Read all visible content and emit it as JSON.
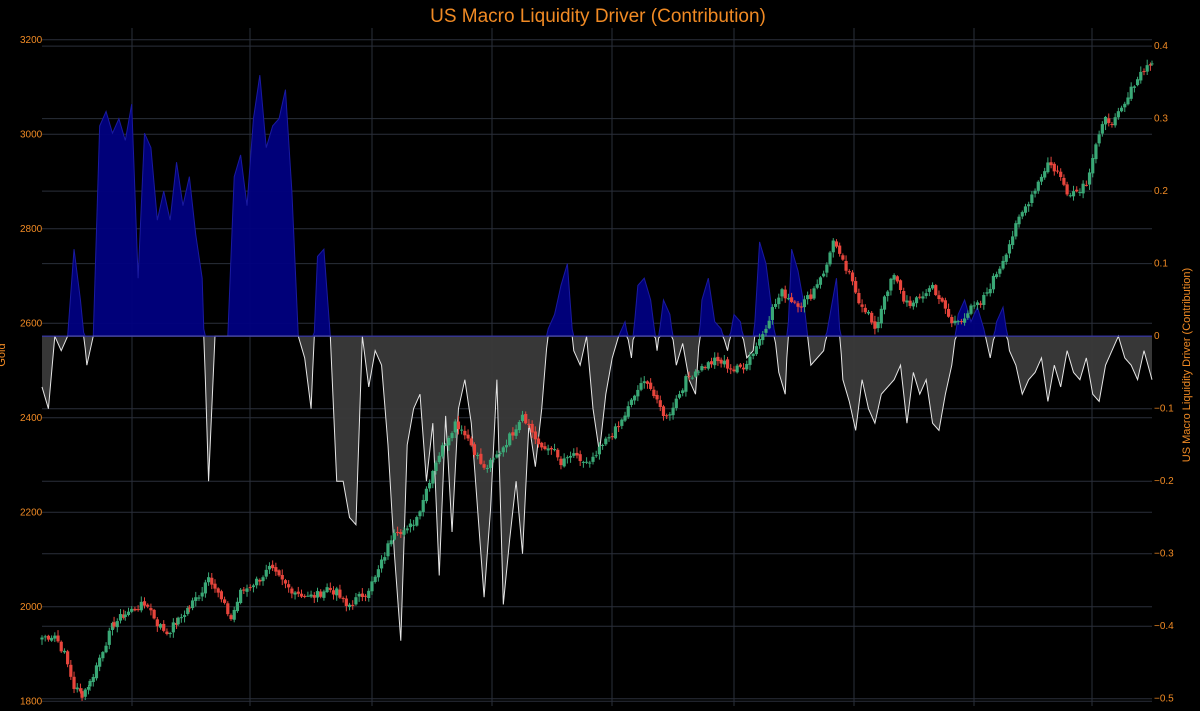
{
  "chart_data": {
    "type": "candlestick-with-area",
    "title": "US Macro Liquidity Driver (Contribution)",
    "y_left_label": "Gold",
    "y_right_label": "US Macro Liquidity Driver (Contribution)",
    "y_left_range": [
      1790,
      3225
    ],
    "y_right_range": [
      -0.51,
      0.425
    ],
    "y_left_ticks": [
      "1800",
      "2000",
      "2200",
      "2400",
      "2600",
      "2800",
      "3000",
      "3200"
    ],
    "y_right_ticks": [
      "−0.5",
      "−0.4",
      "−0.3",
      "−0.2",
      "−0.1",
      "0",
      "0.1",
      "0.2",
      "0.3",
      "0.4"
    ],
    "y_left_tick_values": [
      1800,
      2000,
      2200,
      2400,
      2600,
      2800,
      3000,
      3200
    ],
    "y_right_tick_values": [
      -0.5,
      -0.4,
      -0.3,
      -0.2,
      -0.1,
      0,
      0.1,
      0.2,
      0.3,
      0.4
    ],
    "x_tick_labels": [],
    "grid": true,
    "series": [
      {
        "kind": "candlestick",
        "axis": "left",
        "up_color": "#3aa876",
        "down_color": "#e8453c",
        "close_anchors": [
          [
            0,
            1935
          ],
          [
            8,
            1940
          ],
          [
            14,
            1900
          ],
          [
            20,
            1830
          ],
          [
            25,
            1815
          ],
          [
            30,
            1840
          ],
          [
            38,
            1910
          ],
          [
            45,
            1965
          ],
          [
            52,
            1985
          ],
          [
            60,
            2000
          ],
          [
            66,
            2005
          ],
          [
            72,
            1965
          ],
          [
            78,
            1945
          ],
          [
            85,
            1970
          ],
          [
            92,
            2000
          ],
          [
            100,
            2035
          ],
          [
            104,
            2070
          ],
          [
            108,
            2040
          ],
          [
            114,
            2000
          ],
          [
            118,
            1975
          ],
          [
            124,
            2030
          ],
          [
            130,
            2045
          ],
          [
            136,
            2060
          ],
          [
            142,
            2080
          ],
          [
            148,
            2060
          ],
          [
            154,
            2040
          ],
          [
            160,
            2030
          ],
          [
            166,
            2020
          ],
          [
            172,
            2025
          ],
          [
            178,
            2040
          ],
          [
            184,
            2030
          ],
          [
            190,
            2000
          ],
          [
            196,
            2015
          ],
          [
            202,
            2030
          ],
          [
            208,
            2060
          ],
          [
            214,
            2110
          ],
          [
            220,
            2165
          ],
          [
            228,
            2160
          ],
          [
            234,
            2190
          ],
          [
            240,
            2250
          ],
          [
            246,
            2310
          ],
          [
            252,
            2350
          ],
          [
            258,
            2390
          ],
          [
            264,
            2370
          ],
          [
            270,
            2330
          ],
          [
            276,
            2290
          ],
          [
            282,
            2310
          ],
          [
            288,
            2340
          ],
          [
            294,
            2370
          ],
          [
            300,
            2410
          ],
          [
            306,
            2370
          ],
          [
            312,
            2330
          ],
          [
            318,
            2340
          ],
          [
            324,
            2300
          ],
          [
            330,
            2320
          ],
          [
            336,
            2310
          ],
          [
            342,
            2300
          ],
          [
            348,
            2330
          ],
          [
            354,
            2360
          ],
          [
            360,
            2380
          ],
          [
            366,
            2420
          ],
          [
            372,
            2460
          ],
          [
            378,
            2480
          ],
          [
            384,
            2430
          ],
          [
            390,
            2400
          ],
          [
            396,
            2440
          ],
          [
            402,
            2480
          ],
          [
            408,
            2500
          ],
          [
            414,
            2510
          ],
          [
            420,
            2520
          ],
          [
            426,
            2515
          ],
          [
            432,
            2500
          ],
          [
            438,
            2510
          ],
          [
            444,
            2540
          ],
          [
            450,
            2580
          ],
          [
            456,
            2630
          ],
          [
            462,
            2665
          ],
          [
            468,
            2650
          ],
          [
            474,
            2640
          ],
          [
            480,
            2660
          ],
          [
            486,
            2700
          ],
          [
            490,
            2720
          ],
          [
            494,
            2780
          ],
          [
            498,
            2740
          ],
          [
            504,
            2700
          ],
          [
            510,
            2650
          ],
          [
            516,
            2620
          ],
          [
            520,
            2580
          ],
          [
            526,
            2660
          ],
          [
            532,
            2700
          ],
          [
            538,
            2650
          ],
          [
            544,
            2640
          ],
          [
            550,
            2660
          ],
          [
            556,
            2680
          ],
          [
            562,
            2640
          ],
          [
            568,
            2600
          ],
          [
            574,
            2610
          ],
          [
            580,
            2630
          ],
          [
            586,
            2640
          ],
          [
            592,
            2680
          ],
          [
            598,
            2720
          ],
          [
            604,
            2770
          ],
          [
            610,
            2820
          ],
          [
            616,
            2860
          ],
          [
            622,
            2900
          ],
          [
            628,
            2940
          ],
          [
            634,
            2920
          ],
          [
            640,
            2880
          ],
          [
            646,
            2880
          ],
          [
            652,
            2900
          ],
          [
            658,
            2980
          ],
          [
            664,
            3030
          ],
          [
            670,
            3030
          ],
          [
            676,
            3060
          ],
          [
            682,
            3110
          ],
          [
            688,
            3140
          ],
          [
            693,
            3150
          ]
        ]
      },
      {
        "kind": "area",
        "axis": "right",
        "name": "",
        "positive_fill": "#000080",
        "positive_line": "#1a1aa0",
        "negative_fill": "#3a3a3a",
        "negative_line": "#e6e6e6",
        "points": [
          [
            0,
            -0.07
          ],
          [
            4,
            -0.1
          ],
          [
            8,
            0
          ],
          [
            12,
            -0.02
          ],
          [
            16,
            0
          ],
          [
            20,
            0.12
          ],
          [
            24,
            0.05
          ],
          [
            28,
            -0.04
          ],
          [
            32,
            0
          ],
          [
            36,
            0.29
          ],
          [
            40,
            0.31
          ],
          [
            44,
            0.28
          ],
          [
            48,
            0.3
          ],
          [
            52,
            0.27
          ],
          [
            56,
            0.32
          ],
          [
            60,
            0.08
          ],
          [
            64,
            0.28
          ],
          [
            68,
            0.26
          ],
          [
            72,
            0.16
          ],
          [
            76,
            0.2
          ],
          [
            80,
            0.16
          ],
          [
            84,
            0.24
          ],
          [
            88,
            0.18
          ],
          [
            92,
            0.22
          ],
          [
            96,
            0.14
          ],
          [
            100,
            0.08
          ],
          [
            104,
            -0.2
          ],
          [
            108,
            0
          ],
          [
            112,
            0
          ],
          [
            116,
            0
          ],
          [
            120,
            0.22
          ],
          [
            124,
            0.25
          ],
          [
            128,
            0.18
          ],
          [
            132,
            0.3
          ],
          [
            136,
            0.36
          ],
          [
            140,
            0.26
          ],
          [
            144,
            0.29
          ],
          [
            148,
            0.3
          ],
          [
            152,
            0.34
          ],
          [
            156,
            0.2
          ],
          [
            160,
            0
          ],
          [
            164,
            -0.03
          ],
          [
            168,
            -0.1
          ],
          [
            172,
            0.11
          ],
          [
            176,
            0.12
          ],
          [
            180,
            0
          ],
          [
            184,
            -0.2
          ],
          [
            188,
            -0.2
          ],
          [
            192,
            -0.25
          ],
          [
            196,
            -0.26
          ],
          [
            200,
            0
          ],
          [
            204,
            -0.07
          ],
          [
            208,
            -0.02
          ],
          [
            212,
            -0.04
          ],
          [
            216,
            -0.15
          ],
          [
            220,
            -0.3
          ],
          [
            224,
            -0.42
          ],
          [
            228,
            -0.15
          ],
          [
            232,
            -0.1
          ],
          [
            236,
            -0.08
          ],
          [
            240,
            -0.2
          ],
          [
            244,
            -0.12
          ],
          [
            248,
            -0.33
          ],
          [
            252,
            -0.11
          ],
          [
            256,
            -0.27
          ],
          [
            260,
            -0.1
          ],
          [
            264,
            -0.06
          ],
          [
            268,
            -0.12
          ],
          [
            272,
            -0.24
          ],
          [
            276,
            -0.36
          ],
          [
            280,
            -0.24
          ],
          [
            284,
            -0.06
          ],
          [
            288,
            -0.37
          ],
          [
            292,
            -0.28
          ],
          [
            296,
            -0.2
          ],
          [
            300,
            -0.3
          ],
          [
            304,
            -0.12
          ],
          [
            308,
            -0.18
          ],
          [
            312,
            -0.1
          ],
          [
            316,
            0.01
          ],
          [
            320,
            0.03
          ],
          [
            324,
            0.07
          ],
          [
            328,
            0.1
          ],
          [
            332,
            -0.02
          ],
          [
            336,
            -0.04
          ],
          [
            340,
            0
          ],
          [
            344,
            -0.1
          ],
          [
            348,
            -0.16
          ],
          [
            352,
            -0.08
          ],
          [
            356,
            -0.03
          ],
          [
            360,
            0
          ],
          [
            364,
            0.02
          ],
          [
            368,
            -0.03
          ],
          [
            372,
            0.07
          ],
          [
            376,
            0.08
          ],
          [
            380,
            0.05
          ],
          [
            384,
            -0.02
          ],
          [
            388,
            0.05
          ],
          [
            392,
            0.03
          ],
          [
            396,
            -0.04
          ],
          [
            400,
            -0.01
          ],
          [
            404,
            -0.06
          ],
          [
            408,
            -0.08
          ],
          [
            412,
            0.05
          ],
          [
            416,
            0.08
          ],
          [
            420,
            0.02
          ],
          [
            424,
            0.01
          ],
          [
            428,
            -0.02
          ],
          [
            432,
            0.03
          ],
          [
            436,
            0.02
          ],
          [
            440,
            -0.03
          ],
          [
            444,
            -0.02
          ],
          [
            448,
            0.13
          ],
          [
            452,
            0.1
          ],
          [
            456,
            0.03
          ],
          [
            460,
            -0.05
          ],
          [
            464,
            -0.08
          ],
          [
            468,
            0.12
          ],
          [
            472,
            0.09
          ],
          [
            476,
            0.04
          ],
          [
            480,
            -0.04
          ],
          [
            484,
            -0.03
          ],
          [
            488,
            -0.02
          ],
          [
            492,
            0.03
          ],
          [
            496,
            0.08
          ],
          [
            500,
            -0.06
          ],
          [
            504,
            -0.09
          ],
          [
            508,
            -0.13
          ],
          [
            512,
            -0.06
          ],
          [
            516,
            -0.1
          ],
          [
            520,
            -0.12
          ],
          [
            524,
            -0.08
          ],
          [
            528,
            -0.07
          ],
          [
            532,
            -0.06
          ],
          [
            536,
            -0.04
          ],
          [
            540,
            -0.12
          ],
          [
            544,
            -0.05
          ],
          [
            548,
            -0.08
          ],
          [
            552,
            -0.06
          ],
          [
            556,
            -0.12
          ],
          [
            560,
            -0.13
          ],
          [
            564,
            -0.08
          ],
          [
            568,
            -0.04
          ],
          [
            572,
            0.03
          ],
          [
            576,
            0.05
          ],
          [
            580,
            0.02
          ],
          [
            584,
            0.04
          ],
          [
            588,
            0.01
          ],
          [
            592,
            -0.03
          ],
          [
            596,
            0.02
          ],
          [
            600,
            0.04
          ],
          [
            604,
            -0.02
          ],
          [
            608,
            -0.04
          ],
          [
            612,
            -0.08
          ],
          [
            616,
            -0.06
          ],
          [
            620,
            -0.05
          ],
          [
            624,
            -0.03
          ],
          [
            628,
            -0.09
          ],
          [
            632,
            -0.04
          ],
          [
            636,
            -0.07
          ],
          [
            640,
            -0.02
          ],
          [
            644,
            -0.05
          ],
          [
            648,
            -0.06
          ],
          [
            652,
            -0.03
          ],
          [
            656,
            -0.08
          ],
          [
            660,
            -0.09
          ],
          [
            664,
            -0.04
          ],
          [
            668,
            -0.02
          ],
          [
            672,
            0
          ],
          [
            676,
            -0.03
          ],
          [
            680,
            -0.04
          ],
          [
            684,
            -0.06
          ],
          [
            688,
            -0.02
          ],
          [
            693,
            -0.06
          ]
        ]
      }
    ]
  },
  "colors": {
    "background": "#000000",
    "grid": "#2a2f3a",
    "title": "#f08a24",
    "tick_text": "#f08a24",
    "axis_label": "#f08a24",
    "zero_line": "#3a3aa0"
  }
}
